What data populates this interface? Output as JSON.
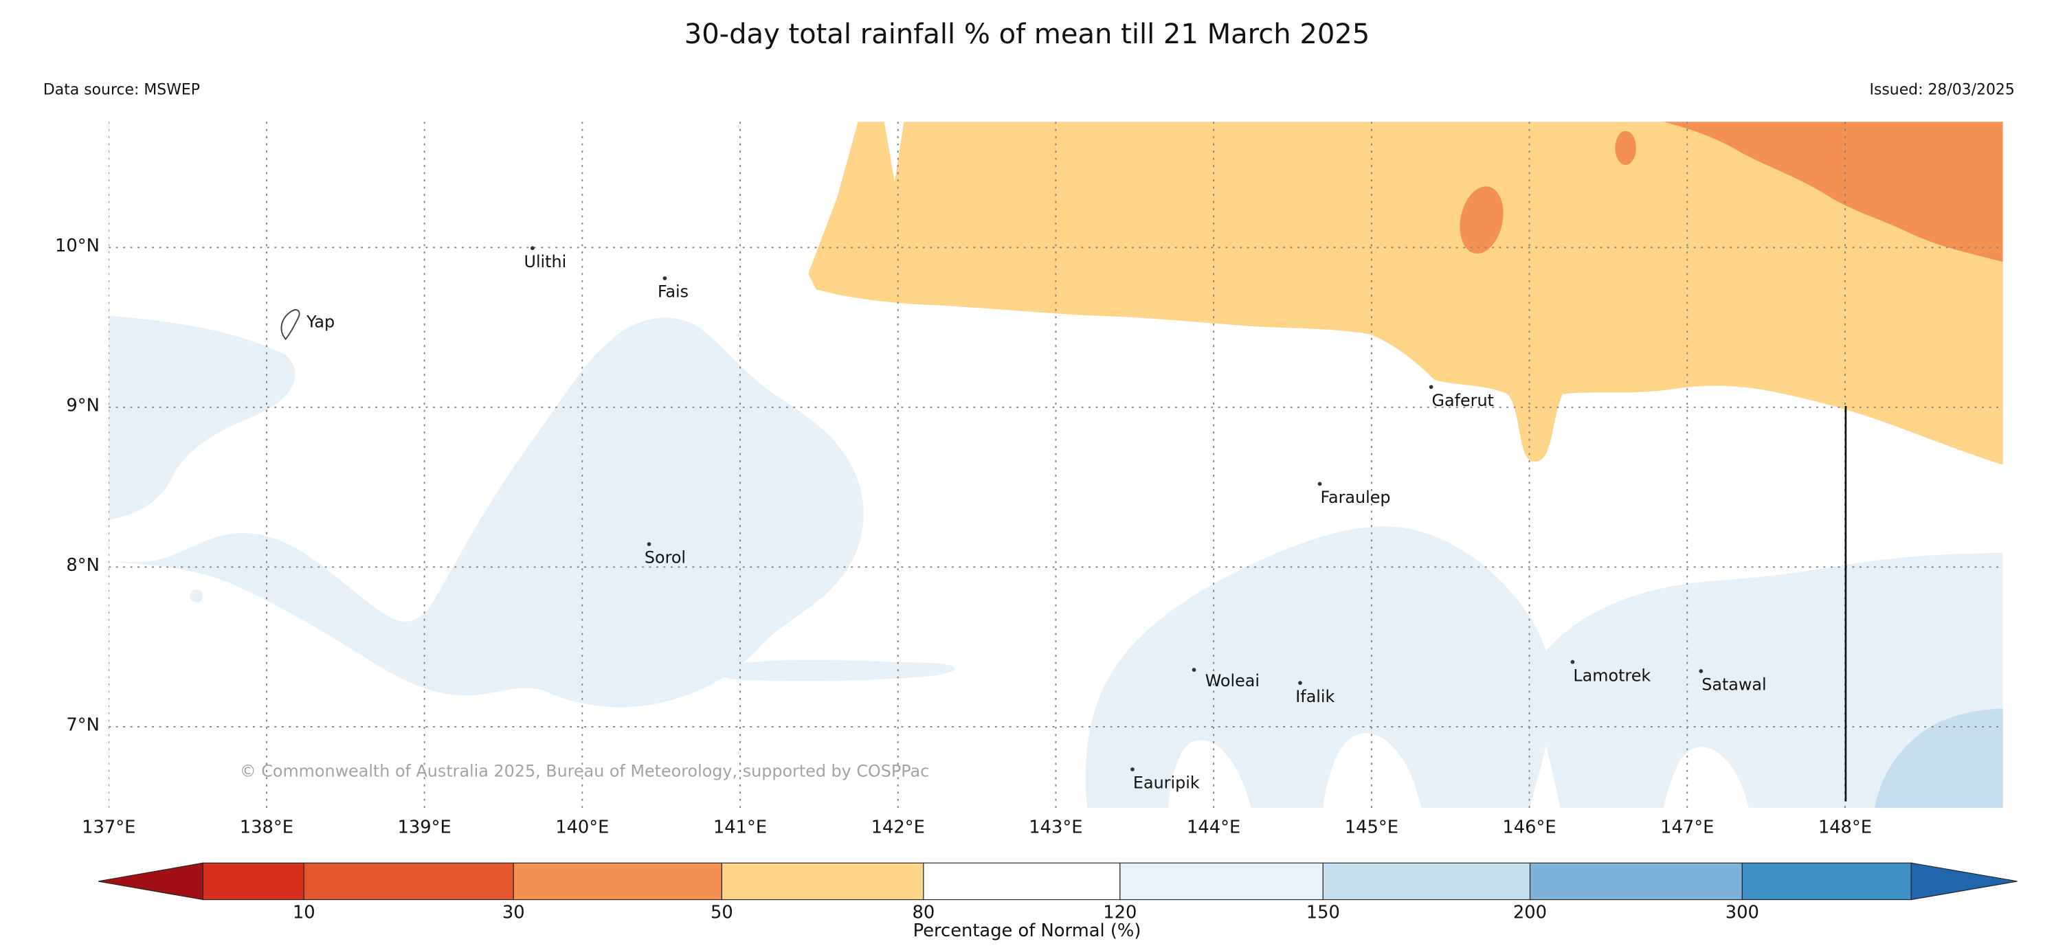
{
  "header": {
    "title": "30-day total rainfall % of mean till 21 March 2025",
    "data_source": "Data source: MSWEP",
    "issued": "Issued: 28/03/2025"
  },
  "footer": {
    "copyright": "© Commonwealth of Australia 2025, Bureau of Meteorology, supported by COSPPac"
  },
  "map": {
    "lon_ticks": [
      "137°E",
      "138°E",
      "139°E",
      "140°E",
      "141°E",
      "142°E",
      "143°E",
      "144°E",
      "145°E",
      "146°E",
      "147°E",
      "148°E"
    ],
    "lat_ticks": [
      "10°N",
      "9°N",
      "8°N",
      "7°N"
    ],
    "colors": {
      "normal": "#ffffff",
      "wet_120_150": "#e7f0f7",
      "wet_150_200": "#c6dff0",
      "dry_50_80": "#fdd488",
      "dry_30_50": "#f59053",
      "grid": "#808080",
      "boundary_line": "#111111"
    },
    "islands": [
      {
        "name": "Yap",
        "label": [
          151,
          145
        ],
        "dot": null
      },
      {
        "name": "Ulithi",
        "label": [
          317,
          99
        ],
        "dot": [
          322,
          95
        ]
      },
      {
        "name": "Fais",
        "label": [
          419,
          122
        ],
        "dot": [
          423,
          118
        ]
      },
      {
        "name": "Gaferut",
        "label": [
          1010,
          205
        ],
        "dot": [
          1008,
          201
        ]
      },
      {
        "name": "Faraulep",
        "label": [
          925,
          279
        ],
        "dot": [
          923,
          275
        ]
      },
      {
        "name": "Sorol",
        "label": [
          409,
          325
        ],
        "dot": [
          411,
          321
        ]
      },
      {
        "name": "Woleai",
        "label": [
          837,
          419
        ],
        "dot": [
          827,
          417
        ]
      },
      {
        "name": "Ifalik",
        "label": [
          906,
          431
        ],
        "dot": [
          908,
          427
        ]
      },
      {
        "name": "Lamotrek",
        "label": [
          1118,
          415
        ],
        "dot": [
          1116,
          411
        ]
      },
      {
        "name": "Satawal",
        "label": [
          1216,
          422
        ],
        "dot": [
          1214,
          418
        ]
      },
      {
        "name": "Eauripik",
        "label": [
          782,
          497
        ],
        "dot": [
          780,
          493
        ]
      }
    ]
  },
  "colorbar": {
    "label": "Percentage of Normal (%)",
    "ticks": [
      "10",
      "30",
      "50",
      "80",
      "120",
      "150",
      "200",
      "300"
    ],
    "colors": [
      "#a01015",
      "#d7301f",
      "#e4572e",
      "#f59053",
      "#fdd488",
      "#ffffff",
      "#e8f1f8",
      "#c6dff0",
      "#7fb2d8",
      "#4090c8",
      "#2166ac"
    ]
  },
  "chart_data": {
    "type": "heatmap",
    "title": "30-day total rainfall % of mean till 21 March 2025",
    "subtitle": "Rainfall percentage of normal map, Yap / Federated States of Micronesia region",
    "colorbar_label": "Percentage of Normal (%)",
    "colorbar_ticks": [
      10,
      30,
      50,
      80,
      120,
      150,
      200,
      300
    ],
    "x_axis_ticks": [
      "137°E",
      "138°E",
      "139°E",
      "140°E",
      "141°E",
      "142°E",
      "143°E",
      "144°E",
      "145°E",
      "146°E",
      "147°E",
      "148°E"
    ],
    "y_axis_ticks": [
      "10°N",
      "9°N",
      "8°N",
      "7°N"
    ],
    "grid": "dotted",
    "regions": [
      {
        "category": "50-80% of normal",
        "color": "#fdd488",
        "location": "broad band along the north of the map, ~9.5°N to top edge, 141.5°E to 149°E, dipping south near Gaferut"
      },
      {
        "category": "30-50% of normal",
        "color": "#f59053",
        "location": "far northeast corner above ~10°N east of ~146.5°E, plus small patches near 145.7°E 10.3°N"
      },
      {
        "category": "120-150% of normal",
        "color": "#e7f0f7",
        "location": "large areas in the west around Yap and Sorol (137°E-141.5°E, 7°N-9.3°N) and along the south around Woleai, Ifalik, Lamotrek, Satawal"
      },
      {
        "category": "150-200% of normal",
        "color": "#c6dff0",
        "location": "southeast corner near 148.5°E below 7°N"
      },
      {
        "category": "80-120% of normal",
        "color": "#ffffff",
        "location": "remaining areas (normal rainfall)"
      }
    ],
    "islands": [
      "Yap",
      "Ulithi",
      "Fais",
      "Gaferut",
      "Faraulep",
      "Sorol",
      "Woleai",
      "Ifalik",
      "Lamotrek",
      "Satawal",
      "Eauripik"
    ],
    "annotations": [
      "vertical boundary line at 148°E from ~9°N to the bottom of the map"
    ]
  }
}
